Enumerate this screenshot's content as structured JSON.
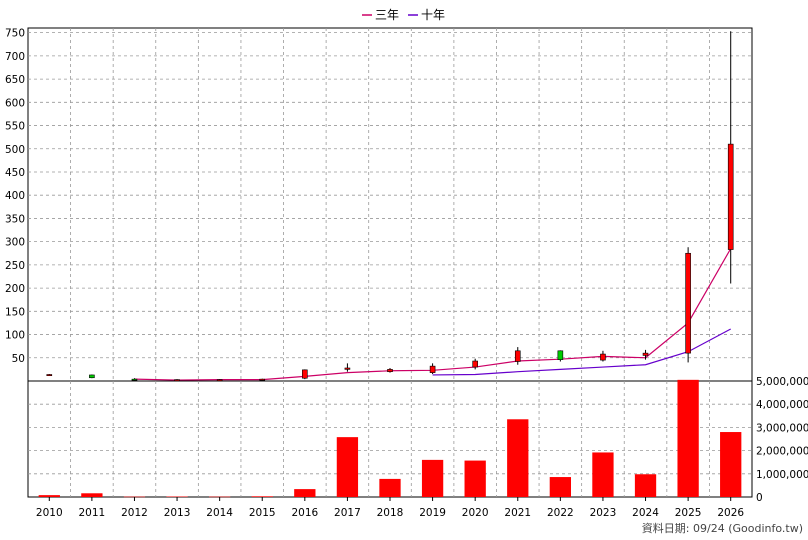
{
  "legend": [
    {
      "label": "三年",
      "color": "#cc0066"
    },
    {
      "label": "十年",
      "color": "#6600cc"
    }
  ],
  "footer": "資料日期: 09/24 (Goodinfo.tw)",
  "colors": {
    "up": "#ff0000",
    "down": "#00cc00",
    "volume": "#ff0000",
    "grid": "#999999"
  },
  "chart_data": [
    {
      "type": "candlestick",
      "title": "",
      "x": [
        "2010",
        "2011",
        "2012",
        "2013",
        "2014",
        "2015",
        "2016",
        "2017",
        "2018",
        "2019",
        "2020",
        "2021",
        "2022",
        "2023",
        "2024",
        "2025",
        "2026"
      ],
      "ylim": [
        0,
        760
      ],
      "yticks": [
        50,
        100,
        150,
        200,
        250,
        300,
        350,
        400,
        450,
        500,
        550,
        600,
        650,
        700,
        750
      ],
      "grid": true,
      "ohlc": [
        {
          "x": "2010",
          "open": 13,
          "high": 15,
          "low": 12,
          "close": 14
        },
        {
          "x": "2011",
          "open": 13,
          "high": 14,
          "low": 6,
          "close": 7
        },
        {
          "x": "2012",
          "open": 4,
          "high": 6,
          "low": 2,
          "close": 3
        },
        {
          "x": "2013",
          "open": 2,
          "high": 4,
          "low": 1,
          "close": 3
        },
        {
          "x": "2014",
          "open": 2,
          "high": 4,
          "low": 1,
          "close": 3
        },
        {
          "x": "2015",
          "open": 2,
          "high": 5,
          "low": 1,
          "close": 4
        },
        {
          "x": "2016",
          "open": 6,
          "high": 25,
          "low": 4,
          "close": 24
        },
        {
          "x": "2017",
          "open": 25,
          "high": 38,
          "low": 20,
          "close": 28
        },
        {
          "x": "2018",
          "open": 20,
          "high": 28,
          "low": 18,
          "close": 25
        },
        {
          "x": "2019",
          "open": 18,
          "high": 38,
          "low": 15,
          "close": 32
        },
        {
          "x": "2020",
          "open": 30,
          "high": 48,
          "low": 25,
          "close": 43
        },
        {
          "x": "2021",
          "open": 42,
          "high": 73,
          "low": 35,
          "close": 65
        },
        {
          "x": "2022",
          "open": 65,
          "high": 66,
          "low": 42,
          "close": 46
        },
        {
          "x": "2023",
          "open": 45,
          "high": 65,
          "low": 42,
          "close": 58
        },
        {
          "x": "2024",
          "open": 55,
          "high": 67,
          "low": 46,
          "close": 60
        },
        {
          "x": "2025",
          "open": 60,
          "high": 288,
          "low": 40,
          "close": 275
        },
        {
          "x": "2026",
          "open": 283,
          "high": 753,
          "low": 210,
          "close": 510
        }
      ],
      "series": [
        {
          "name": "三年",
          "x": [
            "2012",
            "2013",
            "2014",
            "2015",
            "2016",
            "2017",
            "2018",
            "2019",
            "2020",
            "2021",
            "2022",
            "2023",
            "2024",
            "2025",
            "2026"
          ],
          "values": [
            4,
            2,
            3,
            3,
            10,
            18,
            22,
            23,
            30,
            43,
            47,
            53,
            50,
            125,
            285
          ]
        },
        {
          "name": "十年",
          "x": [
            "2019",
            "2020",
            "2021",
            "2022",
            "2023",
            "2024",
            "2025",
            "2026"
          ],
          "values": [
            13,
            14,
            20,
            25,
            30,
            35,
            63,
            112
          ]
        }
      ]
    },
    {
      "type": "bar",
      "title": "",
      "categories": [
        "2010",
        "2011",
        "2012",
        "2013",
        "2014",
        "2015",
        "2016",
        "2017",
        "2018",
        "2019",
        "2020",
        "2021",
        "2022",
        "2023",
        "2024",
        "2025",
        "2026"
      ],
      "values": [
        80000,
        160000,
        15000,
        20000,
        15000,
        30000,
        340000,
        2580000,
        780000,
        1600000,
        1570000,
        3350000,
        860000,
        1920000,
        980000,
        5050000,
        2800000
      ],
      "ylim": [
        0,
        5000000
      ],
      "yticks": [
        "0",
        "1,000,000",
        "2,000,000",
        "3,000,000",
        "4,000,000",
        "5,000,000"
      ]
    }
  ]
}
